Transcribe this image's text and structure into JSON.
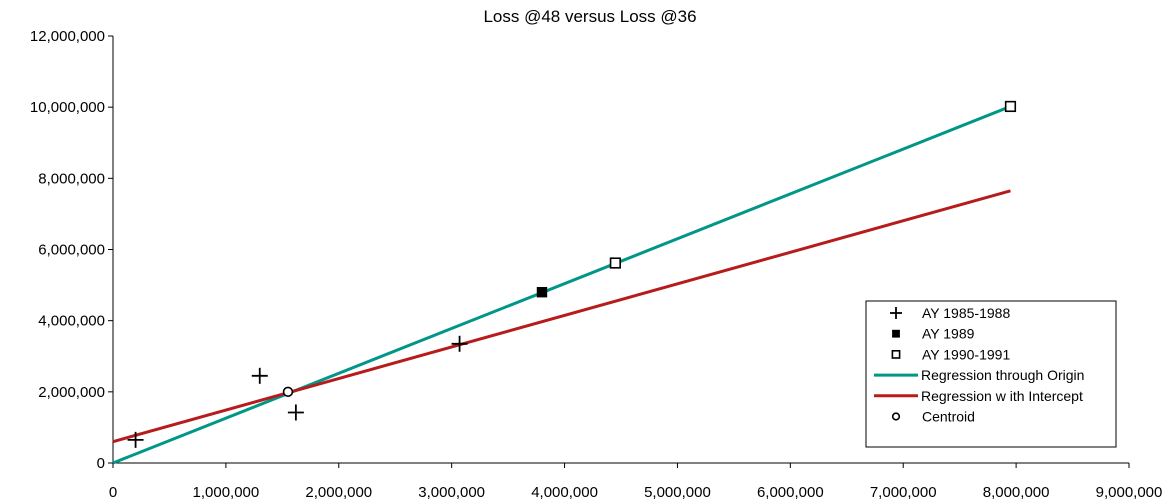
{
  "chart_data": {
    "type": "scatter",
    "title": "Loss @48 versus Loss @36",
    "xlabel": "",
    "ylabel": "",
    "xlim": [
      0,
      9000000
    ],
    "ylim": [
      0,
      12000000
    ],
    "xticks": [
      0,
      1000000,
      2000000,
      3000000,
      4000000,
      5000000,
      6000000,
      7000000,
      8000000,
      9000000
    ],
    "xtick_labels": [
      "0",
      "1,000,000",
      "2,000,000",
      "3,000,000",
      "4,000,000",
      "5,000,000",
      "6,000,000",
      "7,000,000",
      "8,000,000",
      "9,000,000"
    ],
    "yticks": [
      0,
      2000000,
      4000000,
      6000000,
      8000000,
      10000000,
      12000000
    ],
    "ytick_labels": [
      "0",
      "2,000,000",
      "4,000,000",
      "6,000,000",
      "8,000,000",
      "10,000,000",
      "12,000,000"
    ],
    "grid": false,
    "legend_position": "bottom-right",
    "series": [
      {
        "name": "AY 1985-1988",
        "kind": "scatter",
        "marker": "plus",
        "color": "#000000",
        "points": [
          [
            200000,
            650000
          ],
          [
            1300000,
            2450000
          ],
          [
            1620000,
            1420000
          ],
          [
            3070000,
            3350000
          ]
        ]
      },
      {
        "name": "AY 1989",
        "kind": "scatter",
        "marker": "filled-square",
        "color": "#000000",
        "points": [
          [
            3800000,
            4800000
          ]
        ]
      },
      {
        "name": "AY 1990-1991",
        "kind": "scatter",
        "marker": "open-square",
        "color": "#000000",
        "points": [
          [
            4450000,
            5620000
          ],
          [
            7950000,
            10020000
          ]
        ]
      },
      {
        "name": "Regression through Origin",
        "kind": "line",
        "color": "#009688",
        "points": [
          [
            0,
            0
          ],
          [
            7950000,
            10020000
          ]
        ]
      },
      {
        "name": "Regression w ith Intercept",
        "kind": "line",
        "color": "#b71c1c",
        "points": [
          [
            0,
            600000
          ],
          [
            7950000,
            7650000
          ]
        ]
      },
      {
        "name": "Centroid",
        "kind": "scatter",
        "marker": "open-circle",
        "color": "#000000",
        "points": [
          [
            1550000,
            2000000
          ]
        ]
      }
    ]
  }
}
